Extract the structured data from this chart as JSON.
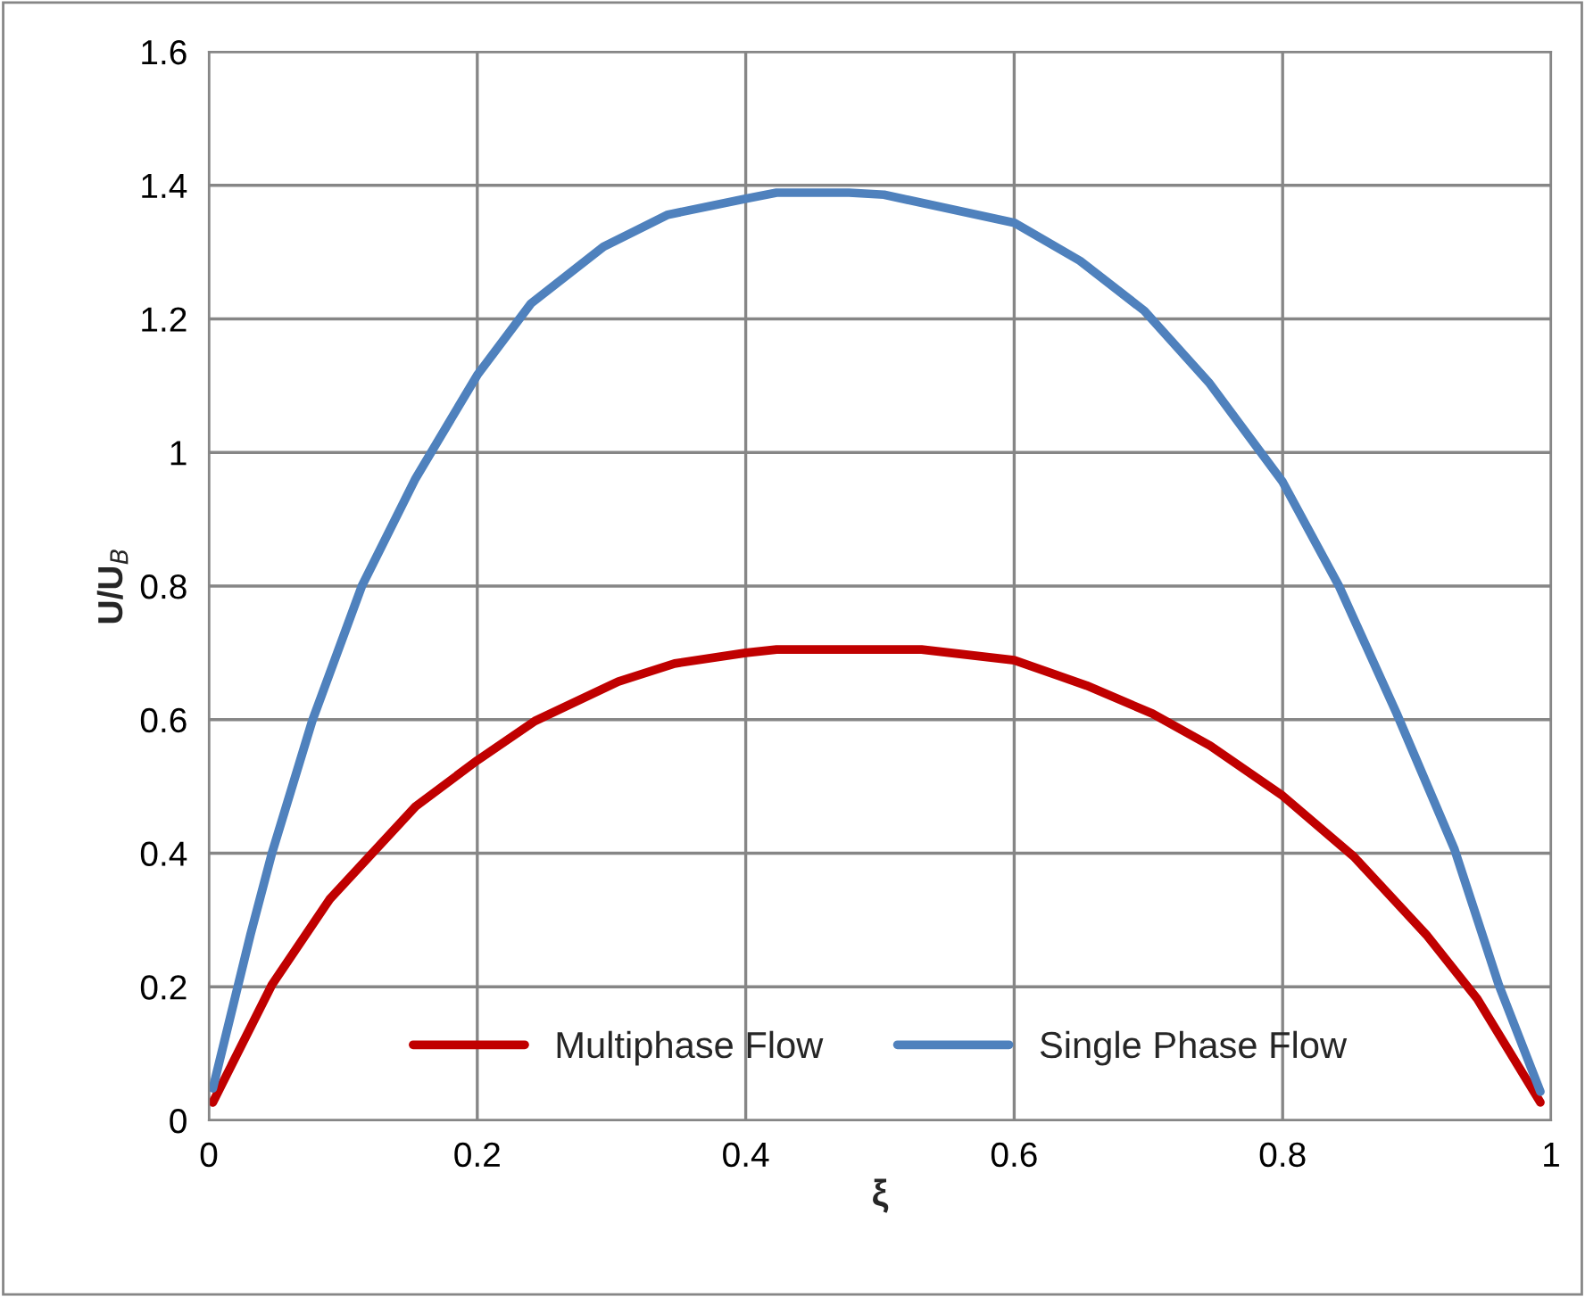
{
  "chart_data": {
    "type": "line",
    "xlabel": "ξ",
    "ylabel": "U/U$_{B}$",
    "xlim": [
      0,
      1
    ],
    "xticks": [
      0,
      0.2,
      0.4,
      0.6,
      0.8,
      1
    ],
    "ylim": [
      0,
      1.6
    ],
    "yticks": [
      0,
      0.2,
      0.4,
      0.6,
      0.8,
      1,
      1.2,
      1.4,
      1.6
    ],
    "grid": true,
    "legend": "bottom",
    "marker": "none",
    "line_style": "solid",
    "series": [
      {
        "name": "Multiphase Flow",
        "color": "#c00000",
        "x": [
          0.003,
          0.047,
          0.09,
          0.154,
          0.2,
          0.243,
          0.305,
          0.347,
          0.4,
          0.423,
          0.503,
          0.531,
          0.6,
          0.654,
          0.703,
          0.746,
          0.8,
          0.853,
          0.907,
          0.945,
          0.992
        ],
        "values": [
          0.027,
          0.203,
          0.331,
          0.47,
          0.539,
          0.598,
          0.657,
          0.684,
          0.7,
          0.705,
          0.705,
          0.705,
          0.689,
          0.651,
          0.609,
          0.561,
          0.486,
          0.395,
          0.278,
          0.182,
          0.027
        ]
      },
      {
        "name": "Single Phase Flow",
        "color": "#4f81bd",
        "x": [
          0.003,
          0.031,
          0.047,
          0.077,
          0.114,
          0.154,
          0.2,
          0.24,
          0.294,
          0.342,
          0.4,
          0.423,
          0.477,
          0.503,
          0.6,
          0.649,
          0.697,
          0.745,
          0.8,
          0.842,
          0.885,
          0.928,
          0.961,
          0.992
        ],
        "values": [
          0.048,
          0.278,
          0.4,
          0.598,
          0.8,
          0.961,
          1.116,
          1.223,
          1.308,
          1.356,
          1.38,
          1.389,
          1.389,
          1.386,
          1.344,
          1.287,
          1.212,
          1.105,
          0.956,
          0.8,
          0.609,
          0.406,
          0.203,
          0.043
        ]
      }
    ]
  }
}
